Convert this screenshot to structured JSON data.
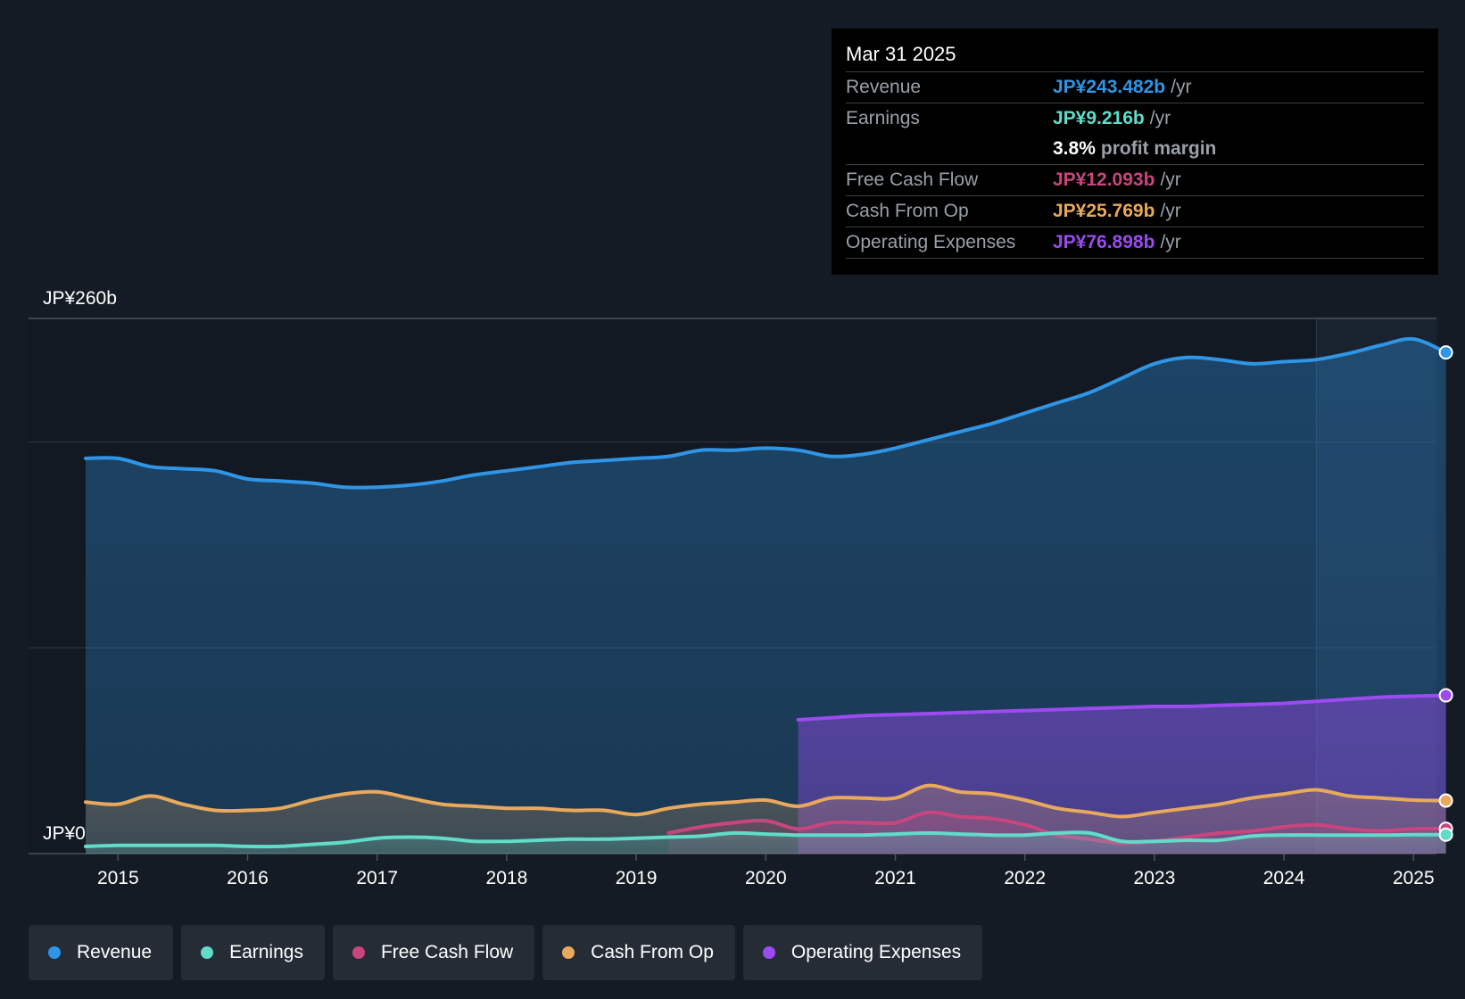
{
  "chart_data": {
    "type": "line",
    "title": "",
    "y_unit": "JP¥ billions",
    "ylim": [
      0,
      260
    ],
    "y_axis_labels": {
      "top": "JP¥260b",
      "bottom": "JP¥0"
    },
    "xlim": [
      2014.75,
      2025.25
    ],
    "x_ticks": [
      "2015",
      "2016",
      "2017",
      "2018",
      "2019",
      "2020",
      "2021",
      "2022",
      "2023",
      "2024",
      "2025"
    ],
    "series": [
      {
        "name": "Revenue",
        "color": "#2f95e6",
        "x": [
          2014.75,
          2015.0,
          2015.25,
          2015.5,
          2015.75,
          2016.0,
          2016.25,
          2016.5,
          2016.75,
          2017.0,
          2017.25,
          2017.5,
          2017.75,
          2018.0,
          2018.25,
          2018.5,
          2018.75,
          2019.0,
          2019.25,
          2019.5,
          2019.75,
          2020.0,
          2020.25,
          2020.5,
          2020.75,
          2021.0,
          2021.25,
          2021.5,
          2021.75,
          2022.0,
          2022.25,
          2022.5,
          2022.75,
          2023.0,
          2023.25,
          2023.5,
          2023.75,
          2024.0,
          2024.25,
          2024.5,
          2024.75,
          2025.0,
          2025.25
        ],
        "values": [
          192,
          192,
          188,
          187,
          186,
          182,
          181,
          180,
          178,
          178,
          179,
          181,
          184,
          186,
          188,
          190,
          191,
          192,
          193,
          196,
          196,
          197,
          196,
          193,
          194,
          197,
          201,
          205,
          209,
          214,
          219,
          224,
          231,
          238,
          241,
          240,
          238,
          239,
          240,
          243,
          247,
          250,
          243.482
        ]
      },
      {
        "name": "Operating Expenses",
        "color": "#9b4bf0",
        "x": [
          2020.25,
          2020.5,
          2020.75,
          2021.0,
          2021.25,
          2021.5,
          2021.75,
          2022.0,
          2022.25,
          2022.5,
          2022.75,
          2023.0,
          2023.25,
          2023.5,
          2023.75,
          2024.0,
          2024.25,
          2024.5,
          2024.75,
          2025.0,
          2025.25
        ],
        "values": [
          65,
          66,
          67,
          67.5,
          68,
          68.5,
          69,
          69.5,
          70,
          70.5,
          71,
          71.5,
          71.5,
          72,
          72.5,
          73,
          74,
          75,
          76,
          76.5,
          76.898
        ]
      },
      {
        "name": "Cash From Op",
        "color": "#e9a95d",
        "x": [
          2014.75,
          2015.0,
          2015.25,
          2015.5,
          2015.75,
          2016.0,
          2016.25,
          2016.5,
          2016.75,
          2017.0,
          2017.25,
          2017.5,
          2017.75,
          2018.0,
          2018.25,
          2018.5,
          2018.75,
          2019.0,
          2019.25,
          2019.5,
          2019.75,
          2020.0,
          2020.25,
          2020.5,
          2020.75,
          2021.0,
          2021.25,
          2021.5,
          2021.75,
          2022.0,
          2022.25,
          2022.5,
          2022.75,
          2023.0,
          2023.25,
          2023.5,
          2023.75,
          2024.0,
          2024.25,
          2024.5,
          2024.75,
          2025.0,
          2025.25
        ],
        "values": [
          25,
          24,
          28,
          24,
          21,
          21,
          22,
          26,
          29,
          30,
          27,
          24,
          23,
          22,
          22,
          21,
          21,
          19,
          22,
          24,
          25,
          26,
          23,
          27,
          27,
          27,
          33,
          30,
          29,
          26,
          22,
          20,
          18,
          20,
          22,
          24,
          27,
          29,
          31,
          28,
          27,
          26,
          25.769
        ]
      },
      {
        "name": "Free Cash Flow",
        "color": "#c9457e",
        "x": [
          2019.25,
          2019.5,
          2019.75,
          2020.0,
          2020.25,
          2020.5,
          2020.75,
          2021.0,
          2021.25,
          2021.5,
          2021.75,
          2022.0,
          2022.25,
          2022.5,
          2022.75,
          2023.0,
          2023.25,
          2023.5,
          2023.75,
          2024.0,
          2024.25,
          2024.5,
          2024.75,
          2025.0,
          2025.25
        ],
        "values": [
          10,
          13,
          15,
          16,
          12,
          15,
          15,
          15,
          20,
          18,
          17,
          14,
          9,
          7,
          5,
          6,
          8,
          10,
          11,
          13,
          14,
          12,
          11,
          12,
          12.093
        ]
      },
      {
        "name": "Earnings",
        "color": "#60dcc9",
        "x": [
          2014.75,
          2015.0,
          2015.25,
          2015.5,
          2015.75,
          2016.0,
          2016.25,
          2016.5,
          2016.75,
          2017.0,
          2017.25,
          2017.5,
          2017.75,
          2018.0,
          2018.25,
          2018.5,
          2018.75,
          2019.0,
          2019.25,
          2019.5,
          2019.75,
          2020.0,
          2020.25,
          2020.5,
          2020.75,
          2021.0,
          2021.25,
          2021.5,
          2021.75,
          2022.0,
          2022.25,
          2022.5,
          2022.75,
          2023.0,
          2023.25,
          2023.5,
          2023.75,
          2024.0,
          2024.25,
          2024.5,
          2024.75,
          2025.0,
          2025.25
        ],
        "values": [
          3.5,
          4,
          4,
          4,
          4,
          3.5,
          3.5,
          4.5,
          5.5,
          7.5,
          8,
          7.5,
          6,
          6,
          6.5,
          7,
          7,
          7.5,
          8,
          8.5,
          10,
          9.5,
          9,
          9,
          9,
          9.5,
          10,
          9.5,
          9,
          9,
          10,
          10,
          6,
          6,
          6.5,
          6.5,
          8.5,
          9,
          9,
          9,
          9,
          9.2,
          9.216
        ]
      }
    ],
    "highlight_start": 2024.25,
    "legend": [
      "Revenue",
      "Earnings",
      "Free Cash Flow",
      "Cash From Op",
      "Operating Expenses"
    ],
    "legend_colors": [
      "#2f95e6",
      "#60dcc9",
      "#c9457e",
      "#e9a95d",
      "#9b4bf0"
    ]
  },
  "tooltip": {
    "date": "Mar 31 2025",
    "rows": [
      {
        "label": "Revenue",
        "value": "JP¥243.482b",
        "unit": "/yr",
        "color": "#2f95e6"
      },
      {
        "label": "Earnings",
        "value": "JP¥9.216b",
        "unit": "/yr",
        "color": "#60dcc9"
      },
      {
        "label": "",
        "value": "3.8%",
        "unit": "profit margin",
        "color": "#ffffff"
      },
      {
        "label": "Free Cash Flow",
        "value": "JP¥12.093b",
        "unit": "/yr",
        "color": "#c9457e"
      },
      {
        "label": "Cash From Op",
        "value": "JP¥25.769b",
        "unit": "/yr",
        "color": "#e9a95d"
      },
      {
        "label": "Operating Expenses",
        "value": "JP¥76.898b",
        "unit": "/yr",
        "color": "#9b4bf0"
      }
    ]
  }
}
